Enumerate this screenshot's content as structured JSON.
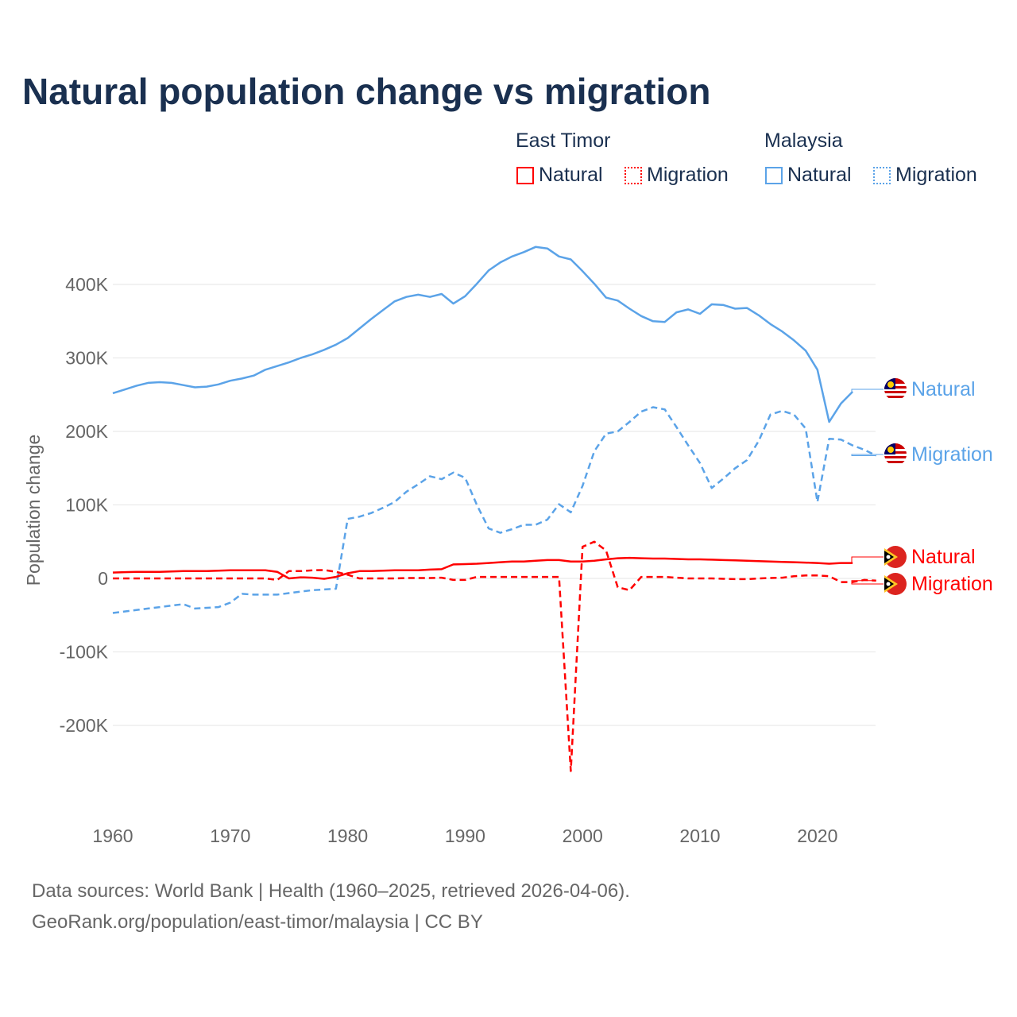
{
  "chart_data": {
    "type": "line",
    "title": "Natural population change vs migration",
    "xlabel": "",
    "ylabel": "Population change",
    "ylim": [
      -290,
      480
    ],
    "xlim": [
      1960,
      2025
    ],
    "y_unit": "thousands",
    "x_ticks": [
      "1960",
      "1970",
      "1980",
      "1990",
      "2000",
      "2010",
      "2020"
    ],
    "y_ticks": [
      {
        "v": 400,
        "label": "400K"
      },
      {
        "v": 300,
        "label": "300K"
      },
      {
        "v": 200,
        "label": "200K"
      },
      {
        "v": 100,
        "label": "100K"
      },
      {
        "v": 0,
        "label": "0"
      },
      {
        "v": -100,
        "label": "-100K"
      },
      {
        "v": -200,
        "label": "-200K"
      }
    ],
    "grid": true,
    "legend": {
      "placement": "top-right",
      "groups": [
        {
          "name": "East Timor",
          "items": [
            "Natural",
            "Migration"
          ]
        },
        {
          "name": "Malaysia",
          "items": [
            "Natural",
            "Migration"
          ]
        }
      ]
    },
    "series": [
      {
        "name": "Natural",
        "country": "Malaysia",
        "color": "#5ba3e8",
        "dash": false,
        "start": 1960,
        "values": [
          252,
          257,
          262,
          266,
          267,
          266,
          263,
          260,
          261,
          264,
          269,
          272,
          276,
          284,
          289,
          294,
          300,
          305,
          311,
          318,
          327,
          340,
          353,
          365,
          377,
          383,
          386,
          383,
          387,
          374,
          384,
          401,
          419,
          430,
          438,
          444,
          451,
          449,
          438,
          434,
          418,
          401,
          382,
          378,
          367,
          357,
          350,
          349,
          362,
          366,
          360,
          373,
          372,
          367,
          368,
          358,
          346,
          336,
          324,
          310,
          284,
          213,
          238,
          254
        ]
      },
      {
        "name": "Migration",
        "country": "Malaysia",
        "color": "#5ba3e8",
        "dash": true,
        "start": 1960,
        "values": [
          -47,
          -45,
          -43,
          -41,
          -39,
          -37,
          -35,
          -41,
          -40,
          -39,
          -33,
          -21,
          -22,
          -22,
          -22,
          -20,
          -18,
          -16,
          -15,
          -14,
          81,
          84,
          89,
          96,
          104,
          118,
          128,
          139,
          135,
          144,
          137,
          100,
          68,
          62,
          67,
          73,
          73,
          80,
          101,
          90,
          126,
          173,
          197,
          200,
          213,
          227,
          233,
          230,
          206,
          181,
          157,
          123,
          136,
          150,
          161,
          187,
          223,
          228,
          223,
          204,
          104,
          190,
          189,
          181,
          175,
          167
        ]
      },
      {
        "name": "Natural",
        "country": "East Timor",
        "color": "#ff0000",
        "dash": false,
        "start": 1960,
        "values": [
          8,
          8.5,
          9,
          9,
          9,
          9.5,
          10,
          10,
          10,
          10.5,
          11,
          11,
          11,
          11,
          9,
          0,
          1.5,
          1,
          -0.5,
          2,
          7,
          10,
          10,
          10.5,
          11,
          11,
          11,
          12,
          12.5,
          19,
          19.5,
          20,
          21,
          22,
          23,
          23,
          24,
          25,
          25,
          23,
          23,
          24,
          26,
          27.5,
          28,
          27.5,
          27,
          27,
          26.5,
          26,
          26,
          25.5,
          25,
          24.5,
          24,
          23.5,
          23,
          22.5,
          22,
          21.5,
          21,
          20,
          21,
          21
        ]
      },
      {
        "name": "Migration",
        "country": "East Timor",
        "color": "#ff0000",
        "dash": true,
        "start": 1960,
        "values": [
          0,
          0,
          0,
          0,
          0,
          0,
          0,
          0,
          0,
          0,
          0,
          0,
          0,
          0,
          -2,
          10,
          10,
          11,
          11.5,
          9,
          5,
          0,
          0,
          0,
          0,
          0.5,
          0.5,
          0.5,
          1,
          -2,
          -2,
          2,
          2,
          2,
          2,
          2,
          2,
          2,
          2,
          -262,
          43,
          50,
          38,
          -12,
          -16,
          2,
          2,
          2,
          1,
          0,
          0,
          0,
          -0.5,
          -1,
          -1,
          0,
          0.5,
          1,
          3,
          4,
          4,
          3,
          -5,
          -5,
          -2,
          -3
        ]
      }
    ],
    "end_labels": [
      {
        "text": "Natural",
        "country": "Malaysia",
        "color": "#5ba3e8",
        "at": 254
      },
      {
        "text": "Migration",
        "country": "Malaysia",
        "color": "#5ba3e8",
        "at": 167
      },
      {
        "text": "Natural",
        "country": "East Timor",
        "color": "#ff0000",
        "at": 26
      },
      {
        "text": "Migration",
        "country": "East Timor",
        "color": "#ff0000",
        "at": -10
      }
    ]
  },
  "legend": {
    "east_timor": "East Timor",
    "malaysia": "Malaysia",
    "natural": "Natural",
    "migration": "Migration"
  },
  "footer": {
    "line1": "Data sources: World Bank | Health (1960–2025, retrieved 2026-04-06).",
    "line2": "GeoRank.org/population/east-timor/malaysia | CC BY"
  },
  "colors": {
    "east_timor": "#ff0000",
    "malaysia": "#5ba3e8",
    "title": "#1a3050"
  }
}
